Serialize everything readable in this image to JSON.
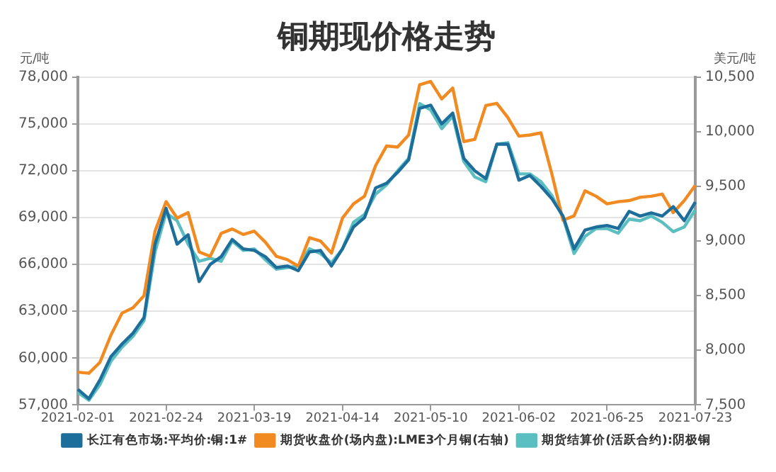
{
  "chart_data": {
    "type": "line",
    "title": "铜期现价格走势",
    "ylabel": "元/吨",
    "y2label": "美元/吨",
    "categories": [
      "2021-02-01",
      null,
      null,
      null,
      null,
      null,
      null,
      null,
      "2021-02-24",
      null,
      null,
      null,
      null,
      null,
      null,
      null,
      "2021-03-19",
      null,
      null,
      null,
      null,
      null,
      null,
      null,
      "2021-04-14",
      null,
      null,
      null,
      null,
      null,
      null,
      null,
      "2021-05-10",
      null,
      null,
      null,
      null,
      null,
      null,
      null,
      "2021-06-02",
      null,
      null,
      null,
      null,
      null,
      null,
      null,
      "2021-06-25",
      null,
      null,
      null,
      null,
      null,
      null,
      null,
      "2021-07-23"
    ],
    "series": [
      {
        "name": "长江有色市场:平均价:铜:1#",
        "color": "#1d6e9b",
        "values": [
          58000,
          57400,
          58600,
          60100,
          60900,
          61600,
          62600,
          67300,
          69600,
          67300,
          67900,
          64900,
          66000,
          66500,
          67600,
          67000,
          66900,
          66500,
          65800,
          65900,
          65600,
          66800,
          66900,
          65900,
          67000,
          68400,
          69000,
          70900,
          71200,
          71900,
          72700,
          76000,
          76200,
          75000,
          75700,
          72800,
          72000,
          71500,
          73700,
          73700,
          71400,
          71700,
          71000,
          70200,
          69100,
          67000,
          68200,
          68400,
          68500,
          68300,
          69400,
          69100,
          69300,
          69100,
          69700,
          68800,
          70000
        ]
      },
      {
        "name": "期货收盘价(场内盘):LME3个月铜(右轴)",
        "color": "#f18a21",
        "axis": "y2",
        "values": [
          7800,
          7790,
          7890,
          8140,
          8340,
          8390,
          8500,
          9090,
          9360,
          9210,
          9260,
          8900,
          8860,
          9070,
          9110,
          9060,
          9090,
          8990,
          8860,
          8830,
          8770,
          9030,
          9000,
          8890,
          9210,
          9340,
          9410,
          9690,
          9870,
          9860,
          9970,
          10430,
          10460,
          10300,
          10400,
          9910,
          9930,
          10240,
          10260,
          10130,
          9960,
          9970,
          9990,
          9610,
          9190,
          9230,
          9460,
          9410,
          9340,
          9360,
          9370,
          9400,
          9410,
          9430,
          9260,
          9370,
          9510
        ]
      },
      {
        "name": "期货结算价(活跃合约):阴极铜",
        "color": "#5bbec0",
        "values": [
          57800,
          57300,
          58300,
          59800,
          60700,
          61400,
          62400,
          66800,
          69300,
          68800,
          67300,
          66200,
          66400,
          66200,
          67500,
          66900,
          67000,
          66300,
          65700,
          65800,
          65900,
          67000,
          66700,
          66100,
          67000,
          68700,
          69200,
          70500,
          71100,
          72000,
          72800,
          76300,
          75900,
          74700,
          75500,
          72600,
          71600,
          71300,
          73700,
          73800,
          71800,
          71800,
          71300,
          70400,
          69000,
          66700,
          67800,
          68300,
          68300,
          68000,
          68900,
          68800,
          69100,
          68700,
          68100,
          68400,
          69500
        ]
      }
    ],
    "ylim": [
      57000,
      78000
    ],
    "yticks": [
      {
        "value": 57000,
        "label": "57,000"
      },
      {
        "value": 60000,
        "label": "60,000"
      },
      {
        "value": 63000,
        "label": "63,000"
      },
      {
        "value": 66000,
        "label": "66,000"
      },
      {
        "value": 69000,
        "label": "69,000"
      },
      {
        "value": 72000,
        "label": "72,000"
      },
      {
        "value": 75000,
        "label": "75,000"
      },
      {
        "value": 78000,
        "label": "78,000"
      }
    ],
    "y2lim": [
      7500,
      10500
    ],
    "y2ticks": [
      {
        "value": 7500,
        "label": "7,500"
      },
      {
        "value": 8000,
        "label": "8,000"
      },
      {
        "value": 8500,
        "label": "8,500"
      },
      {
        "value": 9000,
        "label": "9,000"
      },
      {
        "value": 9500,
        "label": "9,500"
      },
      {
        "value": 10000,
        "label": "10,000"
      },
      {
        "value": 10500,
        "label": "10,500"
      }
    ],
    "grid": "y",
    "legend": "bottom",
    "marker": "none",
    "line_style": "solid"
  }
}
